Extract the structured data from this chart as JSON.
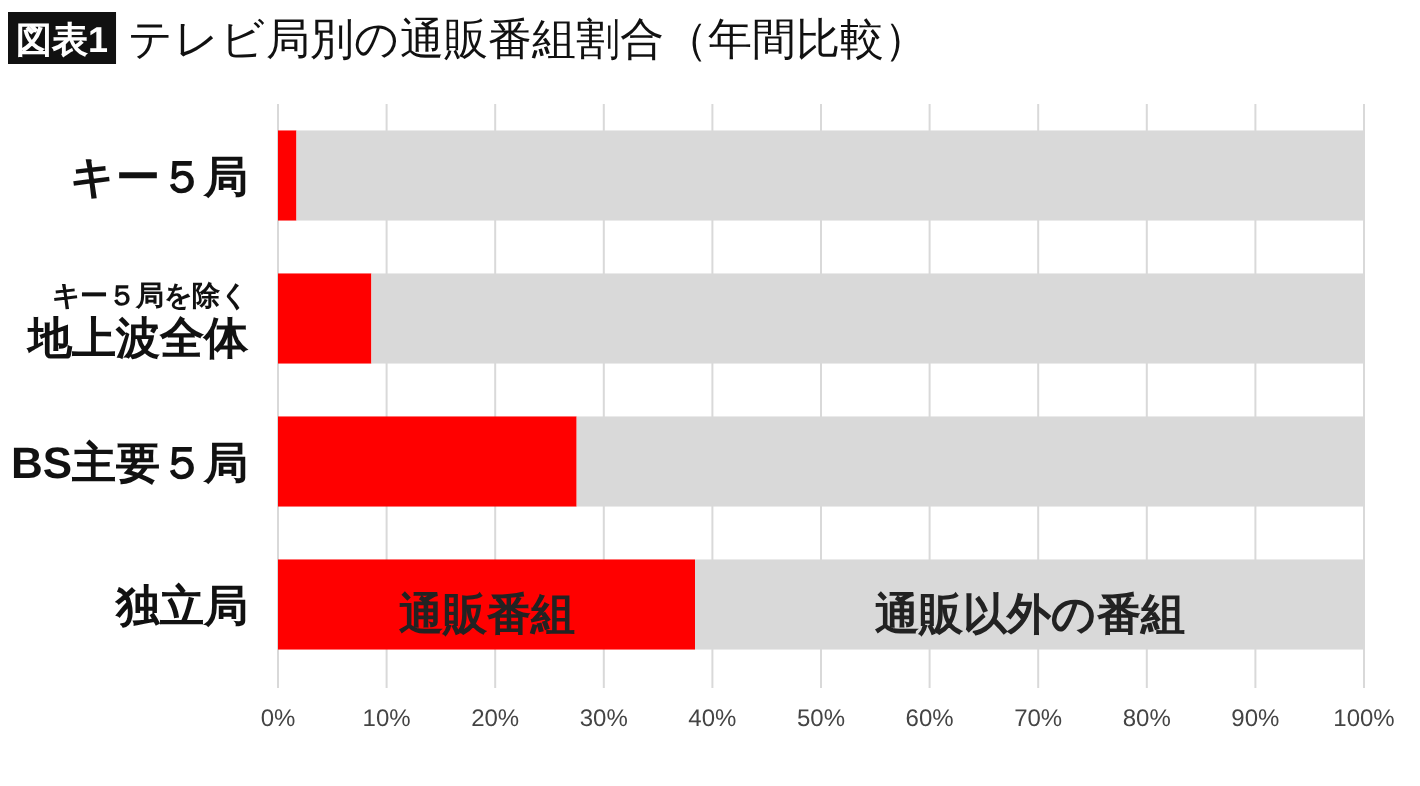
{
  "chart_data": {
    "type": "bar",
    "orientation": "horizontal",
    "stacked": true,
    "title": "テレビ局別の通販番組割合（年間比較）",
    "annotations": [
      "図表1"
    ],
    "categories": [
      "キー５局",
      "キー５局を除く地上波全体",
      "BS主要５局",
      "独立局"
    ],
    "series": [
      {
        "name": "通販番組",
        "color": "#ff0000",
        "values": [
          1.7,
          8.6,
          27.5,
          38.4
        ]
      },
      {
        "name": "通販以外の番組",
        "color": "#d9d9d9",
        "values": [
          98.3,
          91.4,
          72.5,
          61.6
        ]
      }
    ],
    "xlim": [
      0,
      100
    ],
    "xticks": [
      {
        "value": 0,
        "label": "0%"
      },
      {
        "value": 10,
        "label": "10%"
      },
      {
        "value": 20,
        "label": "20%"
      },
      {
        "value": 30,
        "label": "30%"
      },
      {
        "value": 40,
        "label": "40%"
      },
      {
        "value": 50,
        "label": "50%"
      },
      {
        "value": 60,
        "label": "60%"
      },
      {
        "value": 70,
        "label": "70%"
      },
      {
        "value": 80,
        "label": "80%"
      },
      {
        "value": 90,
        "label": "90%"
      },
      {
        "value": 100,
        "label": "100%"
      }
    ],
    "grid": "x",
    "legend": false
  }
}
